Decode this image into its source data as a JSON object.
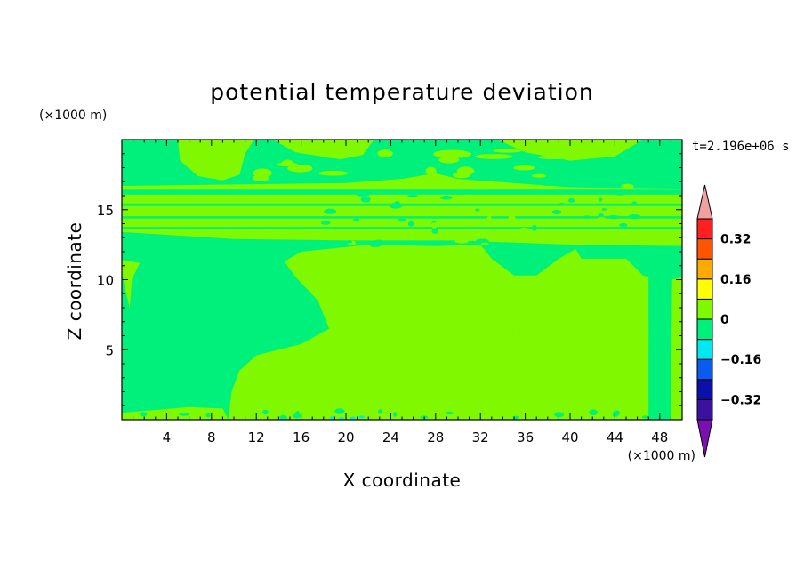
{
  "chart_data": {
    "type": "heatmap",
    "title": "potential temperature deviation",
    "xlabel": "X coordinate",
    "ylabel": "Z coordinate",
    "x_unit": "(×1000 m)",
    "y_unit": "(×1000 m)",
    "time_label": "t=2.196e+06 s",
    "xlim": [
      0,
      50
    ],
    "ylim": [
      0,
      20
    ],
    "x_ticks": [
      4,
      8,
      12,
      16,
      20,
      24,
      28,
      32,
      36,
      40,
      44,
      48
    ],
    "x_tick_labels": [
      "4",
      "8",
      "12",
      "16",
      "20",
      "24",
      "28",
      "32",
      "36",
      "40",
      "44",
      "48"
    ],
    "y_ticks": [
      5,
      10,
      15
    ],
    "y_tick_labels": [
      "5",
      "10",
      "15"
    ],
    "background_level_color": "#00f07c",
    "positive_level_color": "#7ff800",
    "colorbar": {
      "levels": [
        -0.4,
        -0.32,
        -0.24,
        -0.16,
        -0.08,
        0,
        0.08,
        0.16,
        0.24,
        0.32,
        0.4
      ],
      "colors": [
        "#3c10a0",
        "#0a10a8",
        "#0a5cf0",
        "#00e8f0",
        "#00f07c",
        "#7ff800",
        "#ffff00",
        "#ffaa00",
        "#ff5500",
        "#ff2020"
      ],
      "under_color": "#7a10b0",
      "over_color": "#f0a0a0",
      "tick_values": [
        -0.32,
        -0.16,
        0,
        0.16,
        0.32
      ],
      "tick_labels": [
        "−0.32",
        "−0.16",
        "0",
        "0.16",
        "0.32"
      ]
    }
  }
}
